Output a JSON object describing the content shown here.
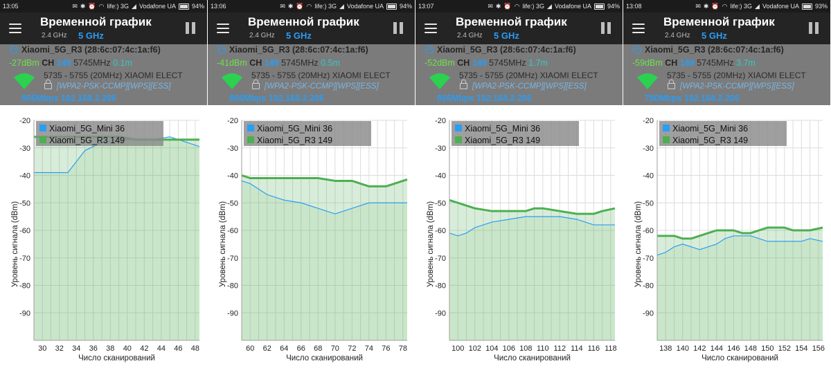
{
  "panels": [
    {
      "status": {
        "time": "13:05",
        "carrier1": "life:) 3G",
        "carrier2": "Vodafone UA",
        "battery": "94%"
      },
      "header": {
        "title": "Временной график",
        "band_24": "2.4 GHz",
        "band_5": "5 GHz"
      },
      "network": {
        "ssid": "Xiaomi_5G_R3 (28:6c:07:4c:1a:f6)",
        "signal": "-27dBm",
        "ch_label": "CH",
        "channel": "149",
        "frequency": "5745MHz",
        "distance": "0.1m",
        "range": "5735 - 5755 (20MHz)",
        "vendor": "XIAOMI ELECT",
        "security": "[WPA2-PSK-CCMP][WPS][ESS]",
        "rate": "866Mbps 192.168.2.206"
      },
      "chart_data": {
        "type": "line",
        "xlabel": "Число сканирований",
        "ylabel": "Уровень сигнала (dBm)",
        "ylim": [
          -100,
          -20
        ],
        "yticks": [
          -20,
          -30,
          -40,
          -50,
          -60,
          -70,
          -80,
          -90
        ],
        "xticks": [
          "30",
          "32",
          "34",
          "36",
          "38",
          "40",
          "42",
          "44",
          "46",
          "48"
        ],
        "xlim": [
          29,
          48.5
        ],
        "legend_position": "top-left",
        "series": [
          {
            "name": "Xiaomi_5G_Mini 36",
            "color": "#2a9df4",
            "x": [
              29,
              33,
              35,
              37,
              39,
              41,
              43,
              45,
              47,
              48.5
            ],
            "y": [
              -39,
              -39,
              -31,
              -28,
              -27,
              -27,
              -27,
              -26,
              -28,
              -29.5
            ]
          },
          {
            "name": "Xiaomi_5G_R3 149",
            "color": "#4caf50",
            "x": [
              29,
              39,
              41,
              43,
              48.5
            ],
            "y": [
              -26,
              -26,
              -27,
              -27,
              -27
            ]
          }
        ]
      }
    },
    {
      "status": {
        "time": "13:06",
        "carrier1": "life:) 3G",
        "carrier2": "Vodafone UA",
        "battery": "94%"
      },
      "header": {
        "title": "Временной график",
        "band_24": "2.4 GHz",
        "band_5": "5 GHz"
      },
      "network": {
        "ssid": "Xiaomi_5G_R3 (28:6c:07:4c:1a:f6)",
        "signal": "-41dBm",
        "ch_label": "CH",
        "channel": "149",
        "frequency": "5745MHz",
        "distance": "0.5m",
        "range": "5735 - 5755 (20MHz)",
        "vendor": "XIAOMI ELECT",
        "security": "[WPA2-PSK-CCMP][WPS][ESS]",
        "rate": "866Mbps 192.168.2.206"
      },
      "chart_data": {
        "type": "line",
        "xlabel": "Число сканирований",
        "ylabel": "Уровень сигнала (dBm)",
        "ylim": [
          -100,
          -20
        ],
        "yticks": [
          -20,
          -30,
          -40,
          -50,
          -60,
          -70,
          -80,
          -90
        ],
        "xticks": [
          "60",
          "62",
          "64",
          "66",
          "68",
          "70",
          "72",
          "74",
          "76",
          "78"
        ],
        "xlim": [
          59,
          78.5
        ],
        "legend_position": "top-left",
        "series": [
          {
            "name": "Xiaomi_5G_Mini 36",
            "color": "#2a9df4",
            "x": [
              59,
              60,
              61,
              62,
              64,
              66,
              68,
              70,
              72,
              74,
              76,
              78.5
            ],
            "y": [
              -42,
              -43,
              -45,
              -47,
              -49,
              -50,
              -52,
              -54,
              -52,
              -50,
              -50,
              -50
            ]
          },
          {
            "name": "Xiaomi_5G_R3 149",
            "color": "#4caf50",
            "x": [
              59,
              60,
              61,
              62,
              64,
              66,
              68,
              70,
              72,
              73,
              74,
              76,
              78.5
            ],
            "y": [
              -40,
              -41,
              -41,
              -41,
              -41,
              -41,
              -41,
              -42,
              -42,
              -43,
              -44,
              -44,
              -41.5
            ]
          }
        ]
      }
    },
    {
      "status": {
        "time": "13:07",
        "carrier1": "life:) 3G",
        "carrier2": "Vodafone UA",
        "battery": "94%"
      },
      "header": {
        "title": "Временной график",
        "band_24": "2.4 GHz",
        "band_5": "5 GHz"
      },
      "network": {
        "ssid": "Xiaomi_5G_R3 (28:6c:07:4c:1a:f6)",
        "signal": "-52dBm",
        "ch_label": "CH",
        "channel": "149",
        "frequency": "5745MHz",
        "distance": "1.7m",
        "range": "5735 - 5755 (20MHz)",
        "vendor": "XIAOMI ELECT",
        "security": "[WPA2-PSK-CCMP][WPS][ESS]",
        "rate": "866Mbps 192.168.2.206"
      },
      "chart_data": {
        "type": "line",
        "xlabel": "Число сканирований",
        "ylabel": "Уровень сигнала (dBm)",
        "ylim": [
          -100,
          -20
        ],
        "yticks": [
          -20,
          -30,
          -40,
          -50,
          -60,
          -70,
          -80,
          -90
        ],
        "xticks": [
          "100",
          "102",
          "104",
          "106",
          "108",
          "110",
          "112",
          "114",
          "116",
          "118"
        ],
        "xlim": [
          99,
          118.5
        ],
        "legend_position": "top-left",
        "series": [
          {
            "name": "Xiaomi_5G_Mini 36",
            "color": "#2a9df4",
            "x": [
              99,
              100,
              101,
              102,
              104,
              106,
              108,
              110,
              112,
              114,
              116,
              118.5
            ],
            "y": [
              -61,
              -62,
              -61,
              -59,
              -57,
              -56,
              -55,
              -55,
              -55,
              -56,
              -58,
              -58
            ]
          },
          {
            "name": "Xiaomi_5G_R3 149",
            "color": "#4caf50",
            "x": [
              99,
              100,
              101,
              102,
              104,
              106,
              108,
              109,
              110,
              112,
              114,
              116,
              117,
              118.5
            ],
            "y": [
              -49,
              -50,
              -51,
              -52,
              -53,
              -53,
              -53,
              -52,
              -52,
              -53,
              -54,
              -54,
              -53,
              -52
            ]
          }
        ]
      }
    },
    {
      "status": {
        "time": "13:08",
        "carrier1": "life:) 3G",
        "carrier2": "Vodafone UA",
        "battery": "93%"
      },
      "header": {
        "title": "Временной график",
        "band_24": "2.4 GHz",
        "band_5": "5 GHz"
      },
      "network": {
        "ssid": "Xiaomi_5G_R3 (28:6c:07:4c:1a:f6)",
        "signal": "-59dBm",
        "ch_label": "CH",
        "channel": "149",
        "frequency": "5745MHz",
        "distance": "3.7m",
        "range": "5735 - 5755 (20MHz)",
        "vendor": "XIAOMI ELECT",
        "security": "[WPA2-PSK-CCMP][WPS][ESS]",
        "rate": "780Mbps 192.168.2.206"
      },
      "chart_data": {
        "type": "line",
        "xlabel": "Число сканирований",
        "ylabel": "Уровень сигнала (dBm)",
        "ylim": [
          -100,
          -20
        ],
        "yticks": [
          -20,
          -30,
          -40,
          -50,
          -60,
          -70,
          -80,
          -90
        ],
        "xticks": [
          "138",
          "140",
          "142",
          "144",
          "146",
          "148",
          "150",
          "152",
          "154",
          "156"
        ],
        "xlim": [
          137,
          156.5
        ],
        "legend_position": "top-left",
        "series": [
          {
            "name": "Xiaomi_5G_Mini 36",
            "color": "#2a9df4",
            "x": [
              137,
              138,
              139,
              140,
              141,
              142,
              143,
              144,
              145,
              146,
              147,
              148,
              149,
              150,
              152,
              154,
              155,
              156.5
            ],
            "y": [
              -69,
              -68,
              -66,
              -65,
              -66,
              -67,
              -66,
              -65,
              -63,
              -62,
              -62,
              -62,
              -63,
              -64,
              -64,
              -64,
              -63,
              -64
            ]
          },
          {
            "name": "Xiaomi_5G_R3 149",
            "color": "#4caf50",
            "x": [
              137,
              139,
              140,
              141,
              142,
              143,
              144,
              145,
              146,
              147,
              148,
              149,
              150,
              151,
              152,
              153,
              154,
              155,
              156.5
            ],
            "y": [
              -62,
              -62,
              -63,
              -63,
              -62,
              -61,
              -60,
              -60,
              -60,
              -61,
              -61,
              -60,
              -59,
              -59,
              -59,
              -60,
              -60,
              -60,
              -59
            ]
          }
        ]
      }
    }
  ]
}
